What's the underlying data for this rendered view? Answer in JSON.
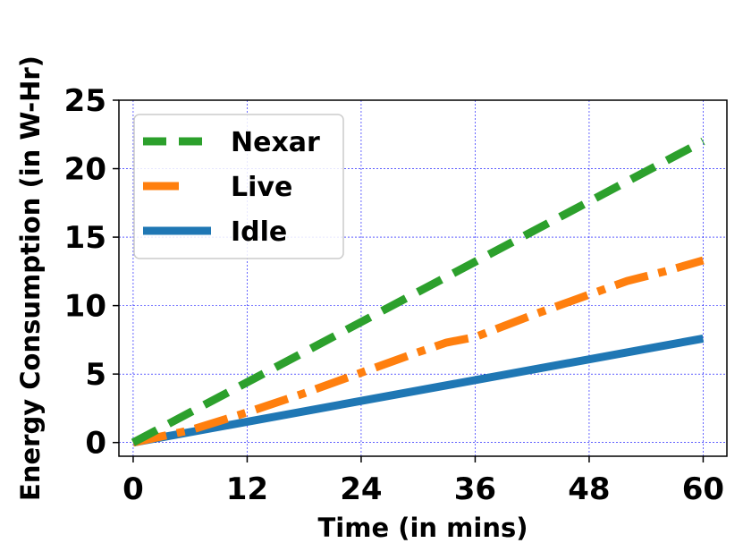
{
  "chart_data": {
    "type": "line",
    "xlabel": "Time (in mins)",
    "ylabel": "Energy Consumption (in W-Hr)",
    "xlim": [
      -1.5,
      62.5
    ],
    "ylim": [
      -1,
      25
    ],
    "xticks": [
      0,
      12,
      24,
      36,
      48,
      60
    ],
    "xtick_labels": [
      "0",
      "12",
      "24",
      "36",
      "48",
      "60"
    ],
    "yticks": [
      0,
      5,
      10,
      15,
      20,
      25
    ],
    "ytick_labels": [
      "0",
      "5",
      "10",
      "15",
      "20",
      "25"
    ],
    "grid": true,
    "grid_color": "#0000ff",
    "legend_position": "top-left",
    "series": [
      {
        "name": "Nexar",
        "color": "#2ca02c",
        "style": "dashed",
        "x": [
          0,
          60
        ],
        "y": [
          0,
          22
        ]
      },
      {
        "name": "Live",
        "color": "#ff7f0e",
        "style": "dashdot",
        "x": [
          0,
          6,
          12,
          18,
          24,
          30,
          33,
          36,
          42,
          48,
          52,
          56,
          60
        ],
        "y": [
          0,
          0.9,
          2.2,
          3.6,
          5.1,
          6.6,
          7.3,
          7.7,
          9.3,
          10.8,
          11.8,
          12.5,
          13.3
        ]
      },
      {
        "name": "Idle",
        "color": "#1f77b4",
        "style": "solid",
        "x": [
          0,
          60
        ],
        "y": [
          0,
          7.6
        ]
      }
    ]
  }
}
